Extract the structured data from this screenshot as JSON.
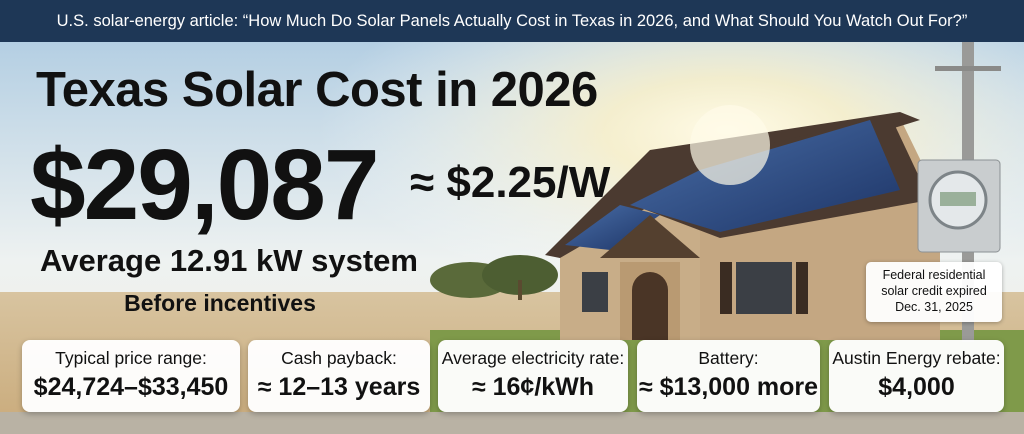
{
  "header": {
    "text": "U.S. solar-energy article: “How Much Do Solar Panels Actually Cost in Texas in 2026, and What Should You Watch Out For?”"
  },
  "hero": {
    "title": "Texas Solar Cost in 2026",
    "price": "$29,087",
    "per_watt": "≈ $2.25/W",
    "system": "Average 12.91 kW system",
    "note": "Before incentives"
  },
  "callout": "Federal residential solar credit expired Dec. 31, 2025",
  "cards": [
    {
      "label": "Typical price range:",
      "value": "$24,724–$33,450"
    },
    {
      "label": "Cash payback:",
      "value": "≈ 12–13 years"
    },
    {
      "label": "Average electricity rate:",
      "value": "≈ 16¢/kWh"
    },
    {
      "label": "Battery:",
      "value": "≈ $13,000 more"
    },
    {
      "label": "Austin Energy rebate:",
      "value": "$4,000"
    }
  ]
}
